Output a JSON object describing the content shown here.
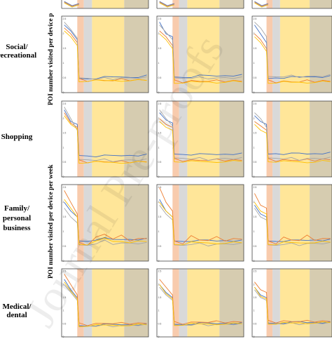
{
  "figure": {
    "row_labels": [
      [
        "Social/",
        "recreational"
      ],
      [
        "Shopping"
      ],
      [
        "Family/",
        "personal",
        "business"
      ],
      [
        "Medical/",
        "dental"
      ]
    ],
    "y_axis_labels": [
      "POI number visited per device p",
      "POI number visited per device per week"
    ],
    "watermark": "Journal Pre-proofs"
  },
  "colors": {
    "series": [
      "#4472c4",
      "#ed7d31",
      "#a5a5a5",
      "#ffc000"
    ],
    "phases": [
      "#f8cbad",
      "#d9d9d9",
      "#ffe699",
      "#d6ccb0"
    ],
    "frame": "#444444"
  },
  "chart_data": [
    {
      "type": "line",
      "row": "Social/recreational",
      "col": 1,
      "y_ticks": [
        "2.5",
        "2",
        "1.5",
        "1",
        "0.5",
        "0"
      ],
      "series": [
        {
          "values": [
            2.3,
            2.1,
            1.8,
            0.5,
            0.45,
            0.5,
            0.55,
            0.5,
            0.55,
            0.5,
            0.55,
            0.6
          ]
        },
        {
          "values": [
            2.2,
            2.0,
            1.7,
            0.45,
            0.4,
            0.42,
            0.45,
            0.4,
            0.44,
            0.42,
            0.43,
            0.45
          ]
        },
        {
          "values": [
            2.4,
            2.15,
            1.85,
            0.5,
            0.45,
            0.47,
            0.5,
            0.48,
            0.5,
            0.47,
            0.5,
            0.52
          ]
        },
        {
          "values": [
            2.1,
            1.9,
            1.6,
            0.4,
            0.38,
            0.4,
            0.42,
            0.4,
            0.42,
            0.4,
            0.41,
            0.43
          ]
        }
      ]
    },
    {
      "type": "line",
      "row": "Social/recreational",
      "col": 2,
      "y_ticks": [
        "2.5",
        "2",
        "1.5",
        "1",
        "0.5",
        "0"
      ],
      "series": [
        {
          "values": [
            2.4,
            2.0,
            1.9,
            0.55,
            0.5,
            0.55,
            0.6,
            0.55,
            0.58,
            0.56,
            0.6,
            0.62
          ]
        },
        {
          "values": [
            2.1,
            1.9,
            1.6,
            0.4,
            0.35,
            0.4,
            0.42,
            0.38,
            0.4,
            0.38,
            0.4,
            0.42
          ]
        },
        {
          "values": [
            2.3,
            2.05,
            1.8,
            0.5,
            0.45,
            0.5,
            0.52,
            0.5,
            0.5,
            0.48,
            0.5,
            0.52
          ]
        },
        {
          "values": [
            2.0,
            1.8,
            1.5,
            0.35,
            0.32,
            0.35,
            0.38,
            0.35,
            0.36,
            0.35,
            0.37,
            0.38
          ]
        }
      ]
    },
    {
      "type": "line",
      "row": "Social/recreational",
      "col": 3,
      "y_ticks": [
        "2.5",
        "2",
        "1.5",
        "1",
        "0.5",
        "0"
      ],
      "series": [
        {
          "values": [
            2.3,
            2.0,
            1.7,
            0.5,
            0.48,
            0.52,
            0.55,
            0.5,
            0.55,
            0.52,
            0.55,
            0.58
          ]
        },
        {
          "values": [
            2.0,
            1.8,
            1.5,
            0.4,
            0.35,
            0.38,
            0.4,
            0.36,
            0.4,
            0.37,
            0.4,
            0.42
          ]
        },
        {
          "values": [
            2.4,
            2.2,
            1.9,
            0.55,
            0.5,
            0.55,
            0.58,
            0.55,
            0.56,
            0.53,
            0.56,
            0.6
          ]
        },
        {
          "values": [
            1.9,
            1.7,
            1.4,
            0.35,
            0.32,
            0.35,
            0.37,
            0.34,
            0.36,
            0.34,
            0.36,
            0.38
          ]
        }
      ]
    },
    {
      "type": "line",
      "row": "Shopping",
      "col": 1,
      "y_ticks": [
        "2.5",
        "2",
        "1.5",
        "1",
        "0.5",
        "0"
      ],
      "series": [
        {
          "values": [
            2.3,
            1.9,
            1.8,
            0.75,
            0.7,
            0.72,
            0.75,
            0.7,
            0.74,
            0.72,
            0.75,
            0.78
          ]
        },
        {
          "values": [
            2.2,
            1.85,
            1.7,
            0.55,
            0.5,
            0.52,
            0.55,
            0.5,
            0.52,
            0.5,
            0.52,
            0.55
          ]
        },
        {
          "values": [
            2.4,
            2.0,
            1.6,
            0.6,
            0.55,
            0.58,
            0.6,
            0.55,
            0.57,
            0.55,
            0.58,
            0.6
          ]
        },
        {
          "values": [
            2.1,
            1.8,
            1.65,
            0.5,
            0.48,
            0.5,
            0.52,
            0.48,
            0.5,
            0.48,
            0.5,
            0.52
          ]
        }
      ]
    },
    {
      "type": "line",
      "row": "Shopping",
      "col": 2,
      "y_ticks": [
        "2.5",
        "2",
        "1.5",
        "1",
        "0.5",
        "0"
      ],
      "series": [
        {
          "values": [
            2.2,
            1.95,
            1.85,
            0.8,
            0.75,
            0.78,
            0.8,
            0.75,
            0.78,
            0.76,
            0.8,
            0.82
          ]
        },
        {
          "values": [
            2.0,
            1.8,
            1.7,
            0.6,
            0.55,
            0.57,
            0.6,
            0.56,
            0.58,
            0.56,
            0.58,
            0.6
          ]
        },
        {
          "values": [
            2.3,
            2.0,
            1.75,
            0.65,
            0.6,
            0.62,
            0.65,
            0.6,
            0.62,
            0.6,
            0.62,
            0.65
          ]
        },
        {
          "values": [
            1.9,
            1.7,
            1.6,
            0.55,
            0.5,
            0.52,
            0.55,
            0.5,
            0.53,
            0.51,
            0.53,
            0.55
          ]
        }
      ]
    },
    {
      "type": "line",
      "row": "Shopping",
      "col": 3,
      "y_ticks": [
        "2.5",
        "2",
        "1.5",
        "1",
        "0.5",
        "0"
      ],
      "series": [
        {
          "values": [
            2.1,
            1.9,
            1.8,
            0.8,
            0.78,
            0.8,
            0.82,
            0.78,
            0.8,
            0.78,
            0.82,
            0.85
          ]
        },
        {
          "values": [
            1.9,
            1.75,
            1.6,
            0.6,
            0.55,
            0.58,
            0.6,
            0.56,
            0.58,
            0.56,
            0.6,
            0.62
          ]
        },
        {
          "values": [
            2.2,
            2.0,
            1.7,
            0.65,
            0.6,
            0.63,
            0.65,
            0.6,
            0.63,
            0.6,
            0.63,
            0.66
          ]
        },
        {
          "values": [
            1.8,
            1.6,
            1.5,
            0.55,
            0.5,
            0.52,
            0.55,
            0.5,
            0.52,
            0.5,
            0.53,
            0.55
          ]
        }
      ]
    },
    {
      "type": "line",
      "row": "Family/personal business",
      "col": 1,
      "y_ticks": [
        "2.5",
        "2",
        "1.5",
        "1",
        "0.5",
        "0"
      ],
      "series": [
        {
          "values": [
            2.0,
            1.7,
            1.5,
            0.7,
            0.65,
            0.75,
            0.8,
            0.7,
            0.75,
            0.72,
            0.75,
            0.78
          ]
        },
        {
          "values": [
            2.4,
            2.0,
            1.6,
            0.6,
            0.55,
            0.8,
            0.95,
            0.75,
            0.85,
            0.7,
            0.75,
            0.8
          ]
        },
        {
          "values": [
            1.8,
            1.5,
            1.3,
            0.55,
            0.5,
            0.6,
            0.7,
            0.6,
            0.62,
            0.58,
            0.6,
            0.62
          ]
        },
        {
          "values": [
            2.1,
            1.8,
            1.5,
            0.6,
            0.55,
            0.65,
            0.8,
            0.65,
            0.7,
            0.62,
            0.65,
            0.68
          ]
        }
      ]
    },
    {
      "type": "line",
      "row": "Family/personal business",
      "col": 2,
      "y_ticks": [
        "2.5",
        "2",
        "1.5",
        "1",
        "0.5",
        "0"
      ],
      "series": [
        {
          "values": [
            2.1,
            1.7,
            1.5,
            0.7,
            0.65,
            0.7,
            0.72,
            0.68,
            0.7,
            0.68,
            0.7,
            0.72
          ]
        },
        {
          "values": [
            2.5,
            2.0,
            1.7,
            0.65,
            0.6,
            0.85,
            0.75,
            0.7,
            0.8,
            0.7,
            0.75,
            0.78
          ]
        },
        {
          "values": [
            1.9,
            1.6,
            1.4,
            0.55,
            0.5,
            0.58,
            0.6,
            0.55,
            0.58,
            0.55,
            0.58,
            0.6
          ]
        },
        {
          "values": [
            2.0,
            1.7,
            1.5,
            0.6,
            0.55,
            0.62,
            0.65,
            0.6,
            0.62,
            0.6,
            0.62,
            0.64
          ]
        }
      ]
    },
    {
      "type": "line",
      "row": "Family/personal business",
      "col": 3,
      "y_ticks": [
        "2.5",
        "2",
        "1.5",
        "1",
        "0.5",
        "0"
      ],
      "series": [
        {
          "values": [
            1.9,
            1.6,
            1.5,
            0.7,
            0.65,
            0.7,
            0.72,
            0.68,
            0.72,
            0.7,
            0.72,
            0.75
          ]
        },
        {
          "values": [
            2.3,
            1.9,
            1.8,
            0.65,
            0.6,
            0.8,
            0.75,
            0.7,
            0.85,
            0.72,
            0.75,
            0.8
          ]
        },
        {
          "values": [
            1.8,
            1.5,
            1.4,
            0.55,
            0.5,
            0.58,
            0.6,
            0.56,
            0.6,
            0.57,
            0.6,
            0.62
          ]
        },
        {
          "values": [
            2.0,
            1.7,
            1.6,
            0.6,
            0.55,
            0.62,
            0.65,
            0.6,
            0.65,
            0.62,
            0.64,
            0.66
          ]
        }
      ]
    },
    {
      "type": "line",
      "row": "Medical/dental",
      "col": 1,
      "y_ticks": [
        "2.5",
        "2",
        "1.5",
        "1",
        "0.5",
        "0"
      ],
      "series": [
        {
          "values": [
            2.2,
            1.8,
            1.5,
            0.45,
            0.4,
            0.45,
            0.5,
            0.45,
            0.48,
            0.45,
            0.48,
            0.5
          ]
        },
        {
          "values": [
            2.4,
            2.0,
            1.6,
            0.5,
            0.45,
            0.5,
            0.55,
            0.5,
            0.52,
            0.5,
            0.52,
            0.55
          ]
        },
        {
          "values": [
            2.0,
            1.7,
            1.4,
            0.4,
            0.38,
            0.42,
            0.45,
            0.42,
            0.44,
            0.42,
            0.45,
            0.47
          ]
        },
        {
          "values": [
            2.1,
            1.75,
            1.45,
            0.42,
            0.4,
            0.43,
            0.47,
            0.43,
            0.46,
            0.43,
            0.46,
            0.48
          ]
        }
      ]
    },
    {
      "type": "line",
      "row": "Medical/dental",
      "col": 2,
      "y_ticks": [
        "2.5",
        "2",
        "1.5",
        "1",
        "0.5",
        "0"
      ],
      "series": [
        {
          "values": [
            2.0,
            1.7,
            1.5,
            0.5,
            0.45,
            0.5,
            0.55,
            0.5,
            0.52,
            0.5,
            0.52,
            0.55
          ]
        },
        {
          "values": [
            2.2,
            1.9,
            1.6,
            0.55,
            0.5,
            0.55,
            0.6,
            0.55,
            0.58,
            0.55,
            0.57,
            0.6
          ]
        },
        {
          "values": [
            1.9,
            1.6,
            1.4,
            0.45,
            0.42,
            0.46,
            0.5,
            0.46,
            0.48,
            0.46,
            0.48,
            0.5
          ]
        },
        {
          "values": [
            2.0,
            1.65,
            1.45,
            0.47,
            0.44,
            0.48,
            0.52,
            0.48,
            0.5,
            0.48,
            0.5,
            0.52
          ]
        }
      ]
    },
    {
      "type": "line",
      "row": "Medical/dental",
      "col": 3,
      "y_ticks": [
        "2.5",
        "2",
        "1.5",
        "1",
        "0.5",
        "0"
      ],
      "series": [
        {
          "values": [
            1.9,
            1.6,
            1.5,
            0.55,
            0.5,
            0.55,
            0.58,
            0.55,
            0.56,
            0.54,
            0.56,
            0.58
          ]
        },
        {
          "values": [
            2.1,
            1.8,
            1.7,
            0.6,
            0.55,
            0.6,
            0.62,
            0.58,
            0.6,
            0.58,
            0.6,
            0.62
          ]
        },
        {
          "values": [
            1.8,
            1.5,
            1.4,
            0.5,
            0.47,
            0.5,
            0.53,
            0.5,
            0.52,
            0.5,
            0.52,
            0.54
          ]
        },
        {
          "values": [
            1.9,
            1.55,
            1.45,
            0.52,
            0.48,
            0.52,
            0.55,
            0.52,
            0.54,
            0.52,
            0.54,
            0.56
          ]
        }
      ]
    }
  ]
}
